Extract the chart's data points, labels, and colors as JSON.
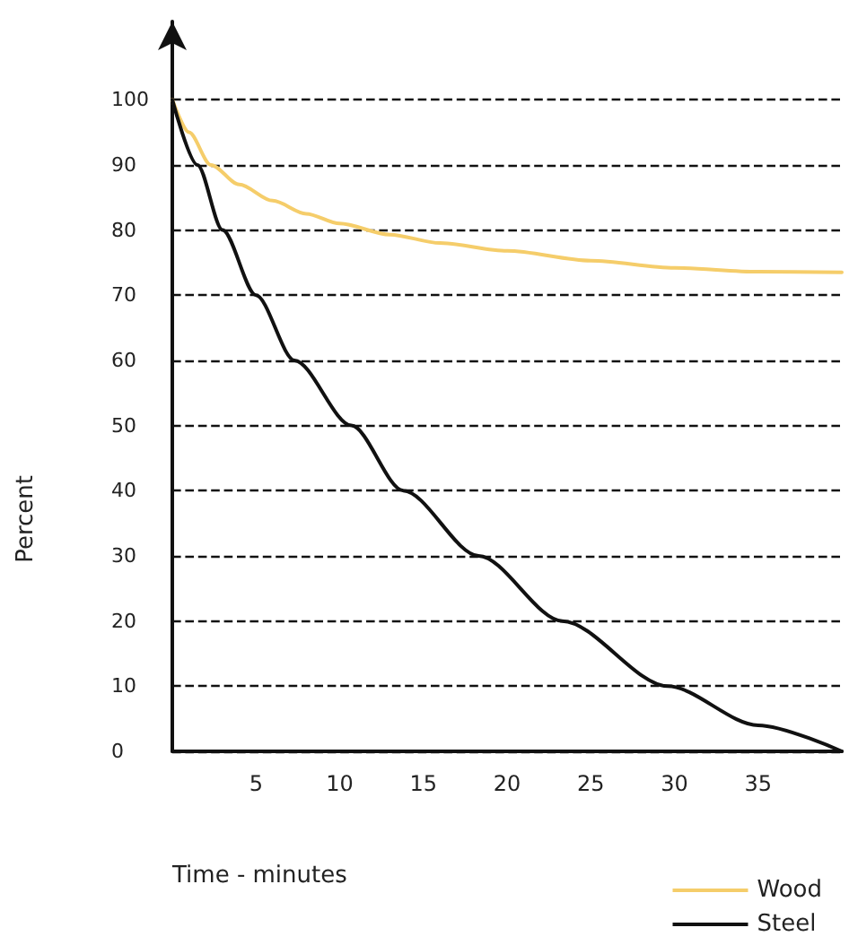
{
  "chart_data": {
    "type": "line",
    "xlabel": "Time - minutes",
    "ylabel": "Percent",
    "xlim": [
      0,
      40
    ],
    "xticks": [
      5,
      10,
      15,
      20,
      25,
      30,
      35
    ],
    "ylim": [
      0,
      112
    ],
    "yticks": [
      0,
      10,
      20,
      30,
      40,
      50,
      60,
      70,
      80,
      90,
      100
    ],
    "grid": "y",
    "legend": "bottom right",
    "marker": "none",
    "line_style": "solid",
    "series": [
      {
        "name": "Wood",
        "color": "#f5cd6a",
        "x": [
          0,
          1,
          2.3,
          4,
          6,
          8,
          10,
          13,
          16,
          20,
          25,
          30,
          35,
          40
        ],
        "values": [
          100,
          95,
          90,
          87,
          84.5,
          82.5,
          81,
          79.3,
          78,
          76.8,
          75.3,
          74.2,
          73.6,
          73.5
        ]
      },
      {
        "name": "Steel",
        "color": "#111111",
        "x": [
          0,
          1.5,
          3,
          5,
          7.3,
          10.7,
          13.8,
          18.3,
          23.3,
          29.6,
          35,
          40
        ],
        "values": [
          100,
          90,
          80,
          70,
          60,
          50,
          40,
          30,
          20,
          10,
          4,
          0
        ]
      }
    ]
  }
}
